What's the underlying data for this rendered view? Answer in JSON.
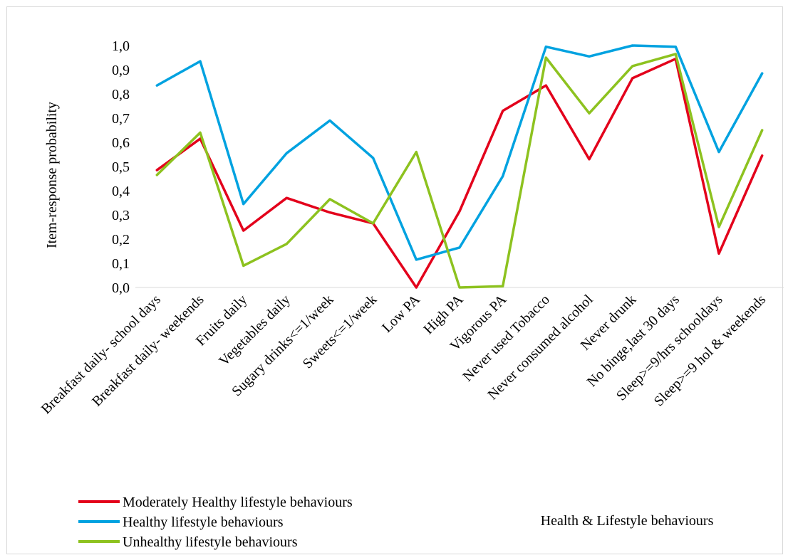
{
  "chart_data": {
    "type": "line",
    "title": "",
    "ylabel": "Item-response probability",
    "xlabel": "Health & Lifestyle behaviours",
    "ylim": [
      0.0,
      1.0
    ],
    "yticks": [
      "0,0",
      "0,1",
      "0,2",
      "0,3",
      "0,4",
      "0,5",
      "0,6",
      "0,7",
      "0,8",
      "0,9",
      "1,0"
    ],
    "grid": false,
    "legend_position": "bottom-left",
    "categories": [
      "Breakfast daily- school days",
      "Breakfast daily- weekends",
      "Fruits daily",
      "Vegetables daily",
      "Sugary drinks<=1/week",
      "Sweets<=1/week",
      "Low PA",
      "High PA",
      "Vigorous PA",
      "Never used Tobacco",
      "Never consumed alcohol",
      "Never drunk",
      "No binge,last 30 days",
      "Sleep>=9/hrs schooldays",
      "Sleep>=9 hol & weekends"
    ],
    "series": [
      {
        "name": "Moderately Healthy lifestyle behaviours",
        "color": "#e3001b",
        "values": [
          0.485,
          0.615,
          0.235,
          0.37,
          0.31,
          0.265,
          0.0,
          0.315,
          0.73,
          0.835,
          0.53,
          0.865,
          0.945,
          0.14,
          0.545
        ]
      },
      {
        "name": "Healthy lifestyle behaviours",
        "color": "#00a2e0",
        "values": [
          0.835,
          0.935,
          0.345,
          0.555,
          0.69,
          0.535,
          0.115,
          0.165,
          0.46,
          0.995,
          0.955,
          1.0,
          0.995,
          0.56,
          0.885
        ]
      },
      {
        "name": "Unhealthy lifestyle behaviours",
        "color": "#8dc21f",
        "values": [
          0.465,
          0.64,
          0.09,
          0.18,
          0.365,
          0.265,
          0.56,
          0.0,
          0.005,
          0.95,
          0.72,
          0.915,
          0.965,
          0.25,
          0.65
        ]
      }
    ]
  }
}
